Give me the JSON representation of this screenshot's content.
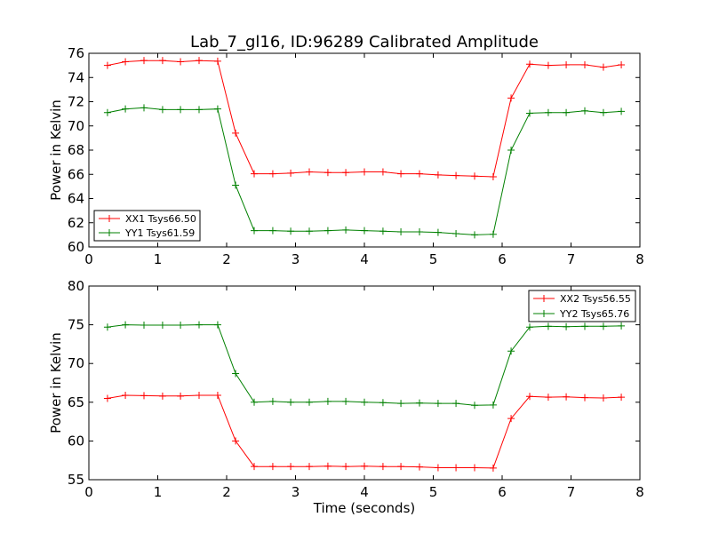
{
  "chart_data": [
    {
      "type": "line",
      "title": "Lab_7_gl16, ID:96289 Calibrated Amplitude",
      "xlabel": "",
      "ylabel": "Power in Kelvin",
      "xlim": [
        0,
        8
      ],
      "ylim": [
        60,
        76
      ],
      "xticks": [
        "0",
        "1",
        "2",
        "3",
        "4",
        "5",
        "6",
        "7",
        "8"
      ],
      "yticks": [
        "60",
        "62",
        "64",
        "66",
        "68",
        "70",
        "72",
        "74",
        "76"
      ],
      "legend_position": "lower-left",
      "x": [
        0.27,
        0.53,
        0.8,
        1.07,
        1.33,
        1.6,
        1.87,
        2.13,
        2.4,
        2.67,
        2.93,
        3.2,
        3.47,
        3.73,
        4.0,
        4.27,
        4.53,
        4.8,
        5.07,
        5.33,
        5.6,
        5.87,
        6.13,
        6.4,
        6.67,
        6.93,
        7.2,
        7.47,
        7.73
      ],
      "series": [
        {
          "name": "XX1 Tsys66.50",
          "color": "#ff0000",
          "values": [
            75.0,
            75.3,
            75.4,
            75.4,
            75.3,
            75.4,
            75.35,
            69.4,
            66.05,
            66.05,
            66.1,
            66.2,
            66.15,
            66.15,
            66.2,
            66.2,
            66.05,
            66.05,
            65.95,
            65.9,
            65.85,
            65.8,
            72.3,
            75.1,
            75.0,
            75.05,
            75.05,
            74.85,
            75.05
          ]
        },
        {
          "name": "YY1 Tsys61.59",
          "color": "#008000",
          "values": [
            71.1,
            71.4,
            71.5,
            71.35,
            71.35,
            71.35,
            71.4,
            65.1,
            61.35,
            61.35,
            61.3,
            61.3,
            61.35,
            61.4,
            61.35,
            61.3,
            61.25,
            61.25,
            61.2,
            61.1,
            61.0,
            61.05,
            68.0,
            71.05,
            71.1,
            71.1,
            71.25,
            71.1,
            71.2
          ]
        }
      ]
    },
    {
      "type": "line",
      "title": "",
      "xlabel": "Time (seconds)",
      "ylabel": "Power in Kelvin",
      "xlim": [
        0,
        8
      ],
      "ylim": [
        55,
        80
      ],
      "xticks": [
        "0",
        "1",
        "2",
        "3",
        "4",
        "5",
        "6",
        "7",
        "8"
      ],
      "yticks": [
        "55",
        "60",
        "65",
        "70",
        "75",
        "80"
      ],
      "legend_position": "upper-right",
      "x": [
        0.27,
        0.53,
        0.8,
        1.07,
        1.33,
        1.6,
        1.87,
        2.13,
        2.4,
        2.67,
        2.93,
        3.2,
        3.47,
        3.73,
        4.0,
        4.27,
        4.53,
        4.8,
        5.07,
        5.33,
        5.6,
        5.87,
        6.13,
        6.4,
        6.67,
        6.93,
        7.2,
        7.47,
        7.73
      ],
      "series": [
        {
          "name": "XX2 Tsys56.55",
          "color": "#ff0000",
          "values": [
            65.5,
            65.9,
            65.85,
            65.8,
            65.8,
            65.9,
            65.9,
            60.0,
            56.7,
            56.7,
            56.7,
            56.7,
            56.75,
            56.7,
            56.75,
            56.7,
            56.7,
            56.65,
            56.55,
            56.55,
            56.55,
            56.5,
            62.9,
            65.75,
            65.65,
            65.7,
            65.6,
            65.55,
            65.65
          ]
        },
        {
          "name": "YY2 Tsys65.76",
          "color": "#008000",
          "values": [
            74.7,
            75.0,
            74.95,
            74.95,
            74.95,
            75.0,
            75.0,
            68.7,
            65.0,
            65.1,
            65.0,
            65.0,
            65.1,
            65.1,
            65.0,
            64.95,
            64.85,
            64.9,
            64.85,
            64.85,
            64.6,
            64.65,
            71.6,
            74.7,
            74.8,
            74.75,
            74.8,
            74.8,
            74.85
          ]
        }
      ]
    }
  ]
}
